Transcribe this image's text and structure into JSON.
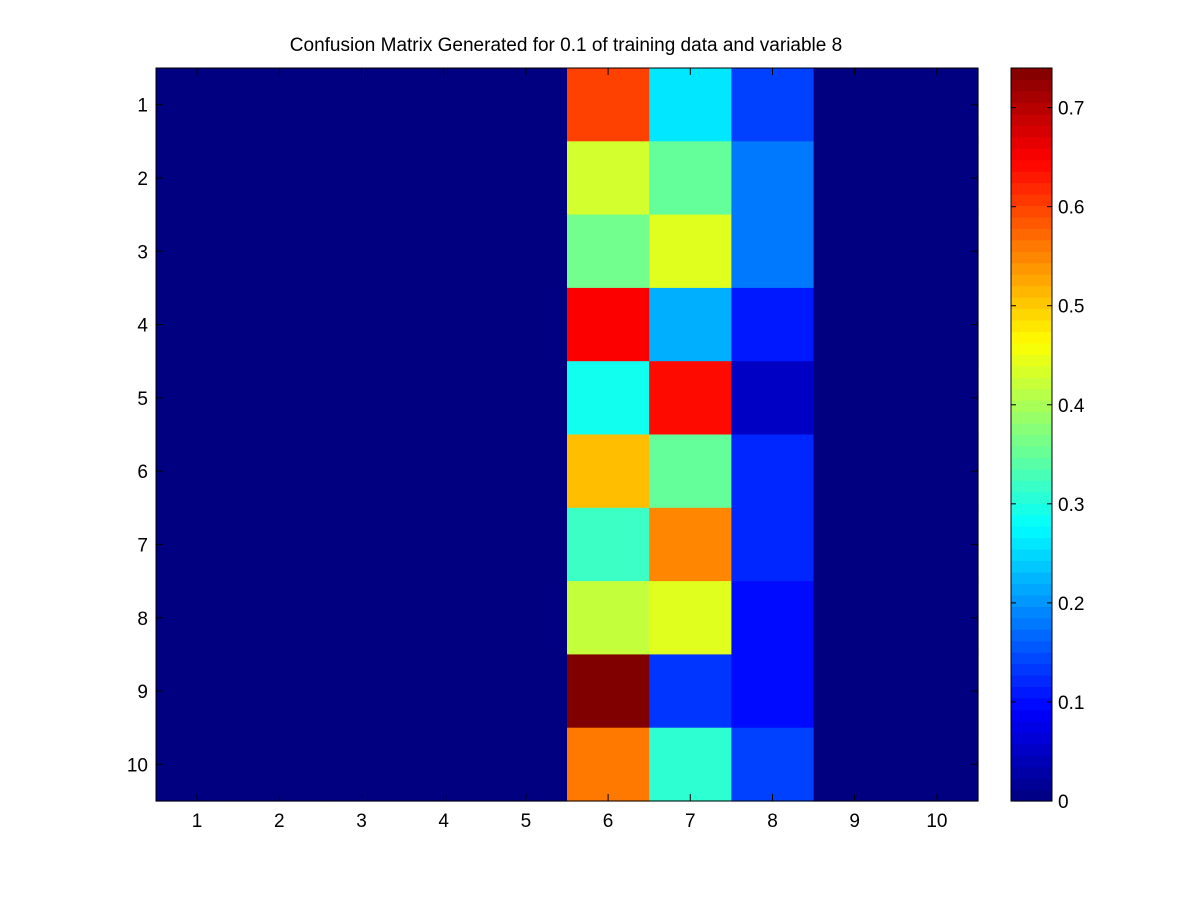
{
  "chart_data": {
    "type": "heatmap",
    "title": "Confusion Matrix Generated for 0.1 of training data and variable 8",
    "xlabel": "",
    "ylabel": "",
    "x_categories": [
      "1",
      "2",
      "3",
      "4",
      "5",
      "6",
      "7",
      "8",
      "9",
      "10"
    ],
    "y_categories": [
      "1",
      "2",
      "3",
      "4",
      "5",
      "6",
      "7",
      "8",
      "9",
      "10"
    ],
    "values": [
      [
        0,
        0,
        0,
        0,
        0,
        0.6,
        0.26,
        0.14,
        0,
        0
      ],
      [
        0,
        0,
        0,
        0,
        0,
        0.43,
        0.35,
        0.18,
        0,
        0
      ],
      [
        0,
        0,
        0,
        0,
        0,
        0.36,
        0.44,
        0.18,
        0,
        0
      ],
      [
        0,
        0,
        0,
        0,
        0,
        0.65,
        0.22,
        0.11,
        0,
        0
      ],
      [
        0,
        0,
        0,
        0,
        0,
        0.29,
        0.64,
        0.05,
        0,
        0
      ],
      [
        0,
        0,
        0,
        0,
        0,
        0.51,
        0.35,
        0.12,
        0,
        0
      ],
      [
        0,
        0,
        0,
        0,
        0,
        0.32,
        0.55,
        0.12,
        0,
        0
      ],
      [
        0,
        0,
        0,
        0,
        0,
        0.42,
        0.44,
        0.1,
        0,
        0
      ],
      [
        0,
        0,
        0,
        0,
        0,
        0.74,
        0.13,
        0.1,
        0,
        0
      ],
      [
        0,
        0,
        0,
        0,
        0,
        0.56,
        0.31,
        0.14,
        0,
        0
      ]
    ],
    "colormap": "jet",
    "clim": [
      0,
      0.74
    ],
    "colorbar": {
      "ticks": [
        0,
        0.1,
        0.2,
        0.3,
        0.4,
        0.5,
        0.6,
        0.7
      ],
      "tick_labels": [
        "0",
        "0.1",
        "0.2",
        "0.3",
        "0.4",
        "0.5",
        "0.6",
        "0.7"
      ],
      "placement": "right"
    },
    "grid": false
  }
}
